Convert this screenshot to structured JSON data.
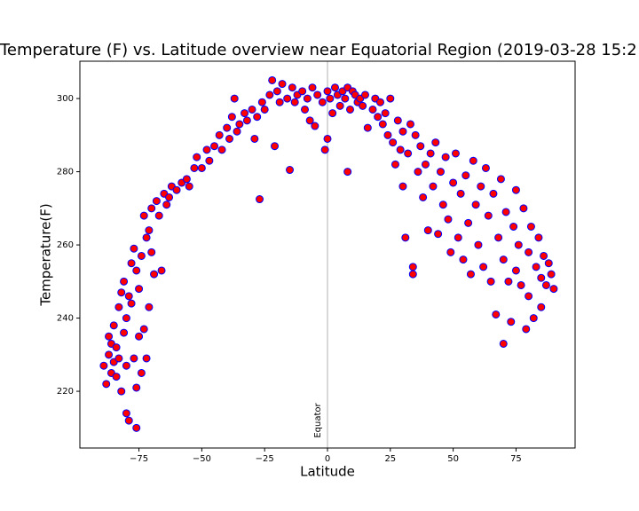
{
  "chart_data": {
    "type": "scatter",
    "title": "Temperature (F) vs. Latitude overview near Equatorial Region (2019-03-28 15:2",
    "x_label": "Latitude",
    "y_label": "Temperature(F)",
    "color": "red",
    "edgecolor": "blue",
    "grid": false,
    "vline": 0,
    "vline_label": "Equator",
    "xlim": [
      -98.5,
      98.5
    ],
    "ylim": [
      204.5,
      310.2
    ],
    "xticks": [
      {
        "value": -75,
        "label": "−75"
      },
      {
        "value": -50,
        "label": "−50"
      },
      {
        "value": -25,
        "label": "−25"
      },
      0,
      25,
      50,
      75
    ],
    "yticks": [
      220,
      240,
      260,
      280,
      300
    ],
    "x": [
      -89,
      -88,
      -87,
      -87,
      -86,
      -86,
      -85,
      -85,
      -84,
      -84,
      -83,
      -83,
      -82,
      -82,
      -81,
      -81,
      -80,
      -80,
      -80,
      -79,
      -79,
      -78,
      -78,
      -77,
      -77,
      -76,
      -76,
      -76,
      -75,
      -75,
      -74,
      -74,
      -73,
      -73,
      -72,
      -72,
      -71,
      -71,
      -70,
      -70,
      -69,
      -68,
      -67,
      -66,
      -65,
      -64,
      -63,
      -62,
      -60,
      -58,
      -56,
      -55,
      -53,
      -52,
      -50,
      -48,
      -47,
      -45,
      -43,
      -42,
      -40,
      -39,
      -38,
      -37,
      -36,
      -35,
      -33,
      -32,
      -30,
      -29,
      -28,
      -27,
      -26,
      -25,
      -23,
      -22,
      -21,
      -20,
      -19,
      -18,
      -16,
      -15,
      -14,
      -13,
      -12,
      -10,
      -9,
      -8,
      -7,
      -6,
      -5,
      -4,
      -2,
      -1,
      0,
      0,
      1,
      2,
      3,
      4,
      5,
      6,
      7,
      8,
      8,
      9,
      10,
      11,
      12,
      13,
      14,
      15,
      16,
      18,
      19,
      20,
      21,
      22,
      23,
      24,
      25,
      26,
      27,
      28,
      29,
      30,
      30,
      31,
      32,
      33,
      34,
      34,
      35,
      36,
      37,
      38,
      39,
      40,
      41,
      42,
      43,
      44,
      45,
      46,
      47,
      48,
      49,
      50,
      51,
      52,
      53,
      54,
      55,
      56,
      57,
      58,
      59,
      60,
      61,
      62,
      63,
      64,
      65,
      66,
      67,
      68,
      69,
      70,
      70,
      71,
      72,
      73,
      74,
      75,
      75,
      76,
      77,
      78,
      79,
      80,
      80,
      81,
      82,
      83,
      84,
      85,
      85,
      86,
      87,
      88,
      89,
      90
    ],
    "values": [
      227,
      222,
      230,
      235,
      225,
      233,
      228,
      238,
      224,
      232,
      243,
      229,
      220,
      247,
      236,
      250,
      214,
      240,
      227,
      246,
      212,
      244,
      255,
      259,
      229,
      210,
      221,
      253,
      248,
      235,
      225,
      257,
      268,
      237,
      262,
      229,
      264,
      243,
      270,
      258,
      252,
      272,
      268,
      253,
      274,
      271,
      273,
      276,
      275,
      277,
      278,
      276,
      281,
      284,
      281,
      286,
      283,
      287,
      290,
      286,
      292,
      289,
      295,
      300,
      291,
      293,
      296,
      294,
      297,
      289,
      295,
      272.5,
      299,
      297,
      301,
      305,
      287,
      302,
      299,
      304,
      300,
      280.5,
      303,
      299,
      301,
      302,
      297,
      300,
      294,
      303,
      292.5,
      301,
      299,
      286,
      289,
      302,
      300,
      296,
      303,
      301,
      298,
      302,
      300,
      280,
      303,
      297,
      302,
      301,
      299,
      300,
      298,
      301,
      292,
      297,
      300,
      295,
      299,
      293,
      296,
      290,
      300,
      288,
      282,
      294,
      286,
      291,
      276,
      262,
      285,
      293,
      254,
      252,
      290,
      280,
      287,
      273,
      282,
      264,
      285,
      276,
      288,
      263,
      280,
      271,
      284,
      267,
      258,
      277,
      285,
      262,
      274,
      256,
      279,
      266,
      252,
      283,
      271,
      260,
      276,
      254,
      281,
      268,
      250,
      274,
      241,
      262,
      278,
      233,
      256,
      269,
      250,
      239,
      265,
      275,
      253,
      260,
      249,
      270,
      237,
      258,
      246,
      265,
      240,
      254,
      262,
      243,
      251,
      257,
      249,
      255,
      252,
      248
    ]
  }
}
